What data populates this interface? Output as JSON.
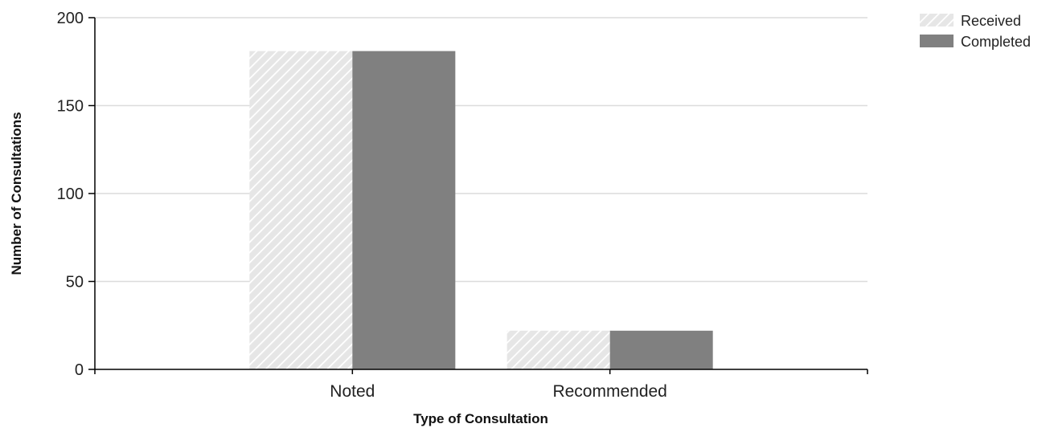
{
  "chart_data": {
    "type": "bar",
    "title": "",
    "xlabel": "Type of Consultation",
    "ylabel": "Number of Consultations",
    "categories": [
      "Noted",
      "Recommended"
    ],
    "series": [
      {
        "name": "Received",
        "values": [
          181,
          22
        ],
        "color": "#d9d9d9",
        "pattern": "diagonal-hatch"
      },
      {
        "name": "Completed",
        "values": [
          181,
          22
        ],
        "color": "#808080"
      }
    ],
    "ylim": [
      0,
      200
    ],
    "yticks": [
      0,
      50,
      100,
      150,
      200
    ],
    "grid": true,
    "legend_position": "top-right"
  }
}
